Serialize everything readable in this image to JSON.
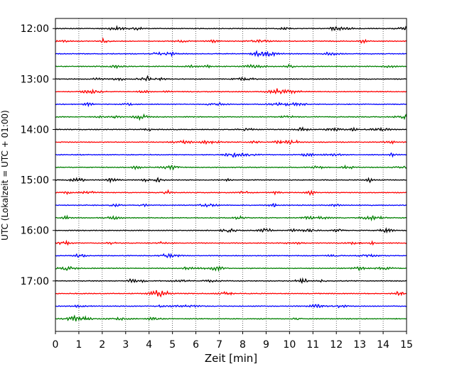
{
  "chart_data": {
    "type": "line",
    "title": "",
    "xlabel": "Zeit  [min]",
    "ylabel": "UTC (Lokalzeit = UTC + 01:00)",
    "xlim": [
      0,
      15
    ],
    "xticks": [
      0,
      1,
      2,
      3,
      4,
      5,
      6,
      7,
      8,
      9,
      10,
      11,
      12,
      13,
      14,
      15
    ],
    "xtick_labels": [
      "0",
      "1",
      "2",
      "3",
      "4",
      "5",
      "6",
      "7",
      "8",
      "9",
      "10",
      "11",
      "12",
      "13",
      "14",
      "15"
    ],
    "ytick_labels": [
      "12:00",
      "13:00",
      "14:00",
      "15:00",
      "16:00",
      "17:00"
    ],
    "ylim_hours": [
      11.8,
      18.0
    ],
    "row_interval_min": 15,
    "rows_start": "12:00",
    "rows_end": "17:45",
    "color_cycle": [
      "#000000",
      "#ff0000",
      "#0000ff",
      "#008000"
    ],
    "grid": {
      "x": "dotted",
      "y": "none"
    },
    "legend": "none",
    "series_description": "seismogram traces, one per 15-minute row, each spanning 15 minutes"
  }
}
